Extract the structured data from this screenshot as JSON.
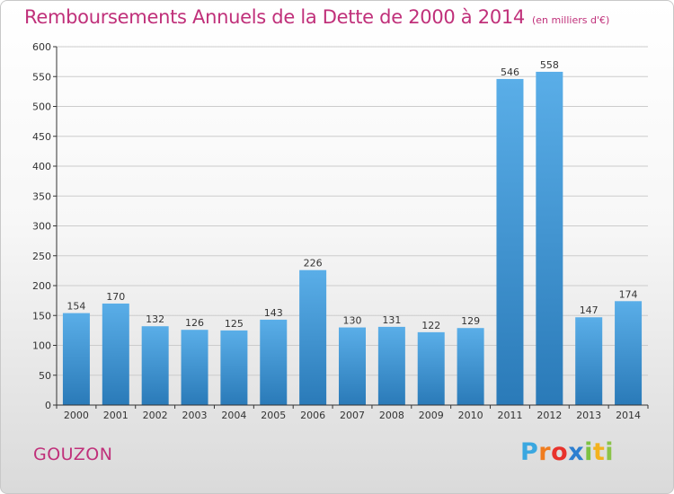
{
  "header": {
    "title": "Remboursements Annuels de la Dette de 2000 à 2014",
    "unit": "(en milliers d'€)"
  },
  "footer": {
    "city": "GOUZON",
    "logo_letters": [
      "P",
      "r",
      "o",
      "x",
      "i",
      "t",
      "i"
    ],
    "logo_colors": [
      "#3aa7e0",
      "#f07c1e",
      "#e8322c",
      "#2d7fd0",
      "#7ec242",
      "#f3b21f",
      "#8bc34a"
    ]
  },
  "colors": {
    "title": "#c0307a",
    "bar_light": "#5aaee8",
    "bar_dark": "#2a7ab8",
    "grid": "#cccccc",
    "axis": "#333333"
  },
  "chart_data": {
    "type": "bar",
    "title": "Remboursements Annuels de la Dette de 2000 à 2014",
    "ylabel": "en milliers d'€",
    "xlabel": "",
    "categories": [
      "2000",
      "2001",
      "2002",
      "2003",
      "2004",
      "2005",
      "2006",
      "2007",
      "2008",
      "2009",
      "2010",
      "2011",
      "2012",
      "2013",
      "2014"
    ],
    "values": [
      154,
      170,
      132,
      126,
      125,
      143,
      226,
      130,
      131,
      122,
      129,
      546,
      558,
      147,
      174
    ],
    "ylim": [
      0,
      600
    ],
    "yticks": [
      0,
      50,
      100,
      150,
      200,
      250,
      300,
      350,
      400,
      450,
      500,
      550,
      600
    ],
    "grid": true,
    "legend": "none"
  }
}
